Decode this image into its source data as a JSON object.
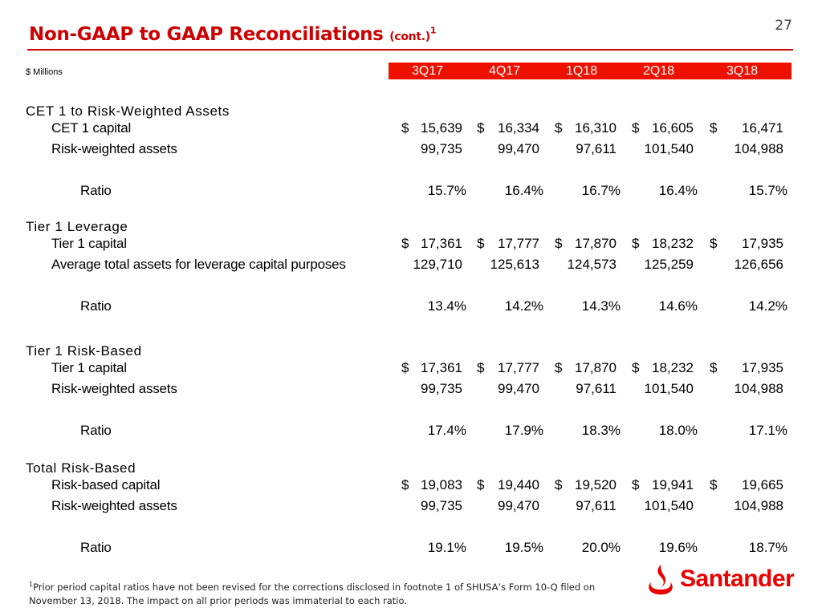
{
  "page_number": "27",
  "title": {
    "main": "Non-GAAP to GAAP Reconciliations",
    "cont": "(cont.)",
    "sup": "1"
  },
  "units": "$ Millions",
  "columns": [
    "3Q17",
    "4Q17",
    "1Q18",
    "2Q18",
    "3Q18"
  ],
  "sections": [
    {
      "title": "CET 1 to Risk-Weighted Assets",
      "rows": [
        {
          "label": "CET 1 capital",
          "dollar": true,
          "values": [
            "15,639",
            "16,334",
            "16,310",
            "16,605",
            "16,471"
          ]
        },
        {
          "label": "Risk-weighted assets",
          "dollar": false,
          "values": [
            "99,735",
            "99,470",
            "97,611",
            "101,540",
            "104,988"
          ]
        },
        {
          "label": "Ratio",
          "dollar": false,
          "ratio": true,
          "values": [
            "15.7%",
            "16.4%",
            "16.7%",
            "16.4%",
            "15.7%"
          ]
        }
      ]
    },
    {
      "title": "Tier 1 Leverage",
      "rows": [
        {
          "label": "Tier 1 capital",
          "dollar": true,
          "values": [
            "17,361",
            "17,777",
            "17,870",
            "18,232",
            "17,935"
          ]
        },
        {
          "label": "Average total assets for leverage capital purposes",
          "dollar": false,
          "values": [
            "129,710",
            "125,613",
            "124,573",
            "125,259",
            "126,656"
          ]
        },
        {
          "label": "Ratio",
          "dollar": false,
          "ratio": true,
          "values": [
            "13.4%",
            "14.2%",
            "14.3%",
            "14.6%",
            "14.2%"
          ]
        }
      ]
    },
    {
      "title": "Tier 1 Risk-Based",
      "rows": [
        {
          "label": "Tier 1 capital",
          "dollar": true,
          "values": [
            "17,361",
            "17,777",
            "17,870",
            "18,232",
            "17,935"
          ]
        },
        {
          "label": "Risk-weighted assets",
          "dollar": false,
          "values": [
            "99,735",
            "99,470",
            "97,611",
            "101,540",
            "104,988"
          ]
        },
        {
          "label": "Ratio",
          "dollar": false,
          "ratio": true,
          "values": [
            "17.4%",
            "17.9%",
            "18.3%",
            "18.0%",
            "17.1%"
          ]
        }
      ]
    },
    {
      "title": "Total Risk-Based",
      "rows": [
        {
          "label": "Risk-based capital",
          "dollar": true,
          "values": [
            "19,083",
            "19,440",
            "19,520",
            "19,941",
            "19,665"
          ]
        },
        {
          "label": "Risk-weighted assets",
          "dollar": false,
          "values": [
            "99,735",
            "99,470",
            "97,611",
            "101,540",
            "104,988"
          ]
        },
        {
          "label": "Ratio",
          "dollar": false,
          "ratio": true,
          "values": [
            "19.1%",
            "19.5%",
            "20.0%",
            "19.6%",
            "18.7%"
          ]
        }
      ]
    }
  ],
  "dollar_sign": "$",
  "footnote": {
    "sup": "1",
    "text": "Prior period capital ratios have not been revised for the corrections disclosed in footnote 1 of SHUSA’s Form 10-Q filed on November 13, 2018. The impact on all prior periods was immaterial to each ratio."
  },
  "logo": {
    "text": "Santander",
    "color": "#ec0000",
    "icon": "flame-icon"
  },
  "colors": {
    "accent": "#cc0000",
    "header_bar": "#ee1100"
  }
}
